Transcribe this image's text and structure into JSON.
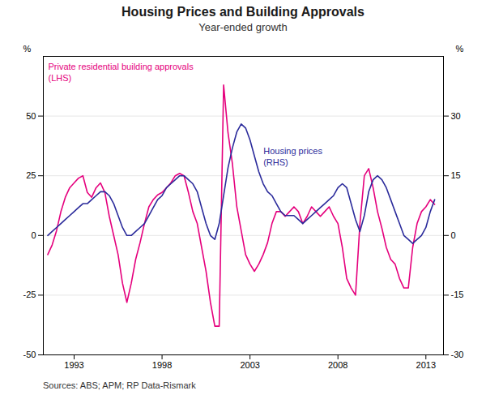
{
  "chart_data": {
    "type": "line",
    "title": "Housing Prices and Building Approvals",
    "subtitle": "Year-ended growth",
    "source": "Sources: ABS; APM; RP Data-Rismark",
    "ylabel": "%",
    "y2label": "%",
    "x": [
      1991.5,
      1991.75,
      1992.0,
      1992.25,
      1992.5,
      1992.75,
      1993.0,
      1993.25,
      1993.5,
      1993.75,
      1994.0,
      1994.25,
      1994.5,
      1994.75,
      1995.0,
      1995.25,
      1995.5,
      1995.75,
      1996.0,
      1996.25,
      1996.5,
      1996.75,
      1997.0,
      1997.25,
      1997.5,
      1997.75,
      1998.0,
      1998.25,
      1998.5,
      1998.75,
      1999.0,
      1999.25,
      1999.5,
      1999.75,
      2000.0,
      2000.25,
      2000.5,
      2000.75,
      2001.0,
      2001.25,
      2001.5,
      2001.75,
      2002.0,
      2002.25,
      2002.5,
      2002.75,
      2003.0,
      2003.25,
      2003.5,
      2003.75,
      2004.0,
      2004.25,
      2004.5,
      2004.75,
      2005.0,
      2005.25,
      2005.5,
      2005.75,
      2006.0,
      2006.25,
      2006.5,
      2006.75,
      2007.0,
      2007.25,
      2007.5,
      2007.75,
      2008.0,
      2008.25,
      2008.5,
      2008.75,
      2009.0,
      2009.25,
      2009.5,
      2009.75,
      2010.0,
      2010.25,
      2010.5,
      2010.75,
      2011.0,
      2011.25,
      2011.5,
      2011.75,
      2012.0,
      2012.25,
      2012.5,
      2012.75,
      2013.0,
      2013.25,
      2013.5
    ],
    "series": [
      {
        "name": "Private residential building approvals\n(LHS)",
        "color": "#e5007d",
        "values": [
          -8,
          -4,
          2,
          10,
          16,
          20,
          22,
          24,
          25,
          18,
          16,
          20,
          22,
          18,
          8,
          0,
          -8,
          -20,
          -28,
          -20,
          -10,
          -3,
          5,
          12,
          15,
          17,
          18,
          20,
          22,
          25,
          26,
          25,
          18,
          10,
          5,
          -5,
          -15,
          -28,
          -38,
          -38,
          63,
          43,
          30,
          12,
          2,
          -8,
          -12,
          -15,
          -12,
          -8,
          -3,
          5,
          10,
          10,
          8,
          10,
          12,
          10,
          5,
          8,
          12,
          10,
          8,
          10,
          12,
          8,
          5,
          -5,
          -18,
          -22,
          -25,
          5,
          25,
          28,
          20,
          10,
          3,
          -5,
          -10,
          -12,
          -18,
          -22,
          -22,
          -5,
          5,
          10,
          12,
          15,
          13
        ]
      },
      {
        "name": "Housing prices\n(RHS)",
        "color": "#2b2b9b",
        "axis": "y2",
        "values": [
          0,
          1,
          2,
          3,
          4,
          5,
          6,
          7,
          8,
          8,
          9,
          10,
          11,
          11,
          10,
          8,
          5,
          2,
          0,
          0,
          1,
          2,
          3,
          5,
          7,
          9,
          10,
          12,
          13,
          14,
          15,
          15,
          14,
          13,
          11,
          7,
          3,
          0,
          -1,
          3,
          10,
          17,
          22,
          26,
          28,
          27,
          24,
          20,
          16,
          13,
          11,
          10,
          8,
          6,
          5,
          5,
          5,
          4,
          3,
          4,
          5,
          6,
          7,
          8,
          9,
          10,
          12,
          13,
          12,
          8,
          4,
          1,
          5,
          11,
          14,
          15,
          14,
          12,
          9,
          6,
          3,
          0,
          -1,
          -2,
          -1,
          0,
          2,
          6,
          9
        ]
      }
    ],
    "xlim": [
      1991.25,
      2014.0
    ],
    "xticks": [
      1993,
      1998,
      2003,
      2008,
      2013
    ],
    "ylim": [
      -50,
      75
    ],
    "yticks": [
      -50,
      -25,
      0,
      25,
      50
    ],
    "y2lim": [
      -30,
      45
    ],
    "y2ticks": [
      -30,
      -15,
      0,
      15,
      30
    ],
    "grid": true
  }
}
